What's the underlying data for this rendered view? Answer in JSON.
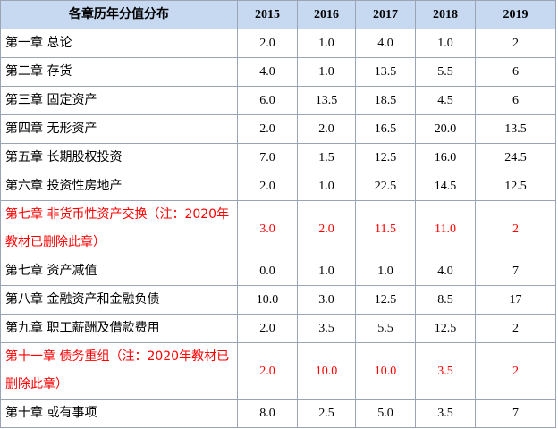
{
  "table": {
    "header": [
      "各章历年分值分布",
      "2015",
      "2016",
      "2017",
      "2018",
      "2019"
    ],
    "rows": [
      {
        "cells": [
          "第一章 总论",
          "2.0",
          "1.0",
          "4.0",
          "1.0",
          "2"
        ]
      },
      {
        "cells": [
          "第二章 存货",
          "4.0",
          "1.0",
          "13.5",
          "5.5",
          "6"
        ]
      },
      {
        "cells": [
          "第三章 固定资产",
          "6.0",
          "13.5",
          "18.5",
          "4.5",
          "6"
        ]
      },
      {
        "cells": [
          "第四章 无形资产",
          "2.0",
          "2.0",
          "16.5",
          "20.0",
          "13.5"
        ]
      },
      {
        "cells": [
          "第五章 长期股权投资",
          "7.0",
          "1.5",
          "12.5",
          "16.0",
          "24.5"
        ]
      },
      {
        "cells": [
          "第六章 投资性房地产",
          "2.0",
          "1.0",
          "22.5",
          "14.5",
          "12.5"
        ]
      },
      {
        "cells": [
          "第七章 非货币性资产交换（注：2020年教材已删除此章）",
          "3.0",
          "2.0",
          "11.5",
          "11.0",
          "2"
        ],
        "color": "#ff0000"
      },
      {
        "cells": [
          "第七章 资产减值",
          "0.0",
          "1.0",
          "1.0",
          "4.0",
          "7"
        ]
      },
      {
        "cells": [
          "第八章 金融资产和金融负债",
          "10.0",
          "3.0",
          "12.5",
          "8.5",
          "17"
        ]
      },
      {
        "cells": [
          "第九章 职工薪酬及借款费用",
          "2.0",
          "3.5",
          "5.5",
          "12.5",
          "2"
        ]
      },
      {
        "cells": [
          "第十一章 债务重组（注：2020年教材已删除此章）",
          "2.0",
          "10.0",
          "10.0",
          "3.5",
          "2"
        ],
        "color": "#ff0000"
      },
      {
        "cells": [
          "第十章 或有事项",
          "8.0",
          "2.5",
          "5.0",
          "3.5",
          "7"
        ]
      }
    ]
  }
}
